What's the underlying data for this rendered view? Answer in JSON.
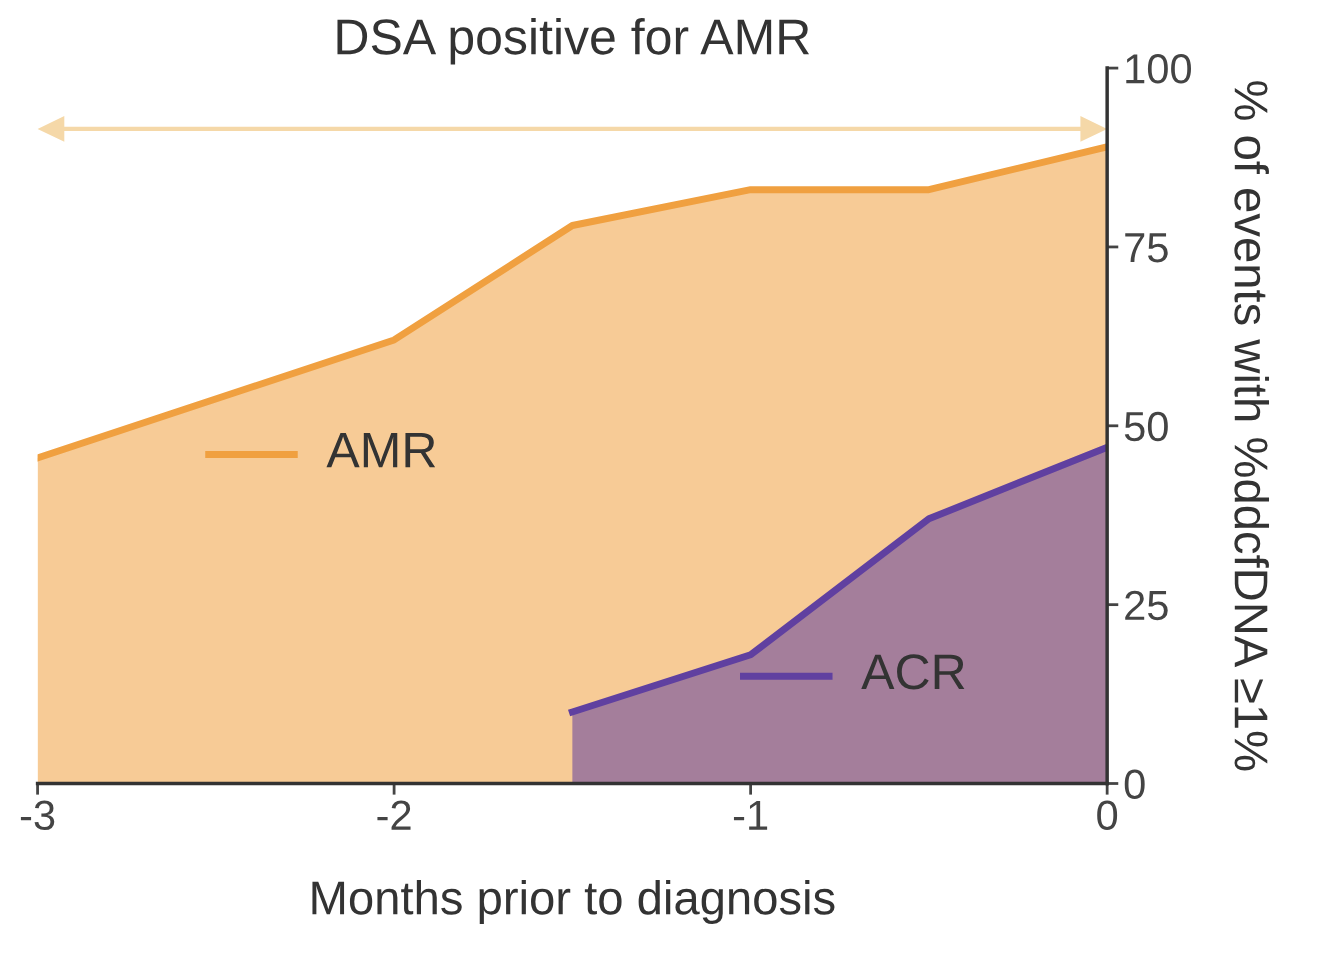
{
  "chart_data": {
    "type": "area",
    "xlabel": "Months prior to diagnosis",
    "y2label": "% of events with %ddcfDNA ≥1%",
    "annotations": [
      "DSA positive for AMR"
    ],
    "series": [
      {
        "name": "AMR",
        "color": "#f0a040",
        "x": [
          -3,
          -2,
          -1.5,
          -1,
          -0.5,
          0
        ],
        "values": [
          45.5,
          62,
          78,
          83,
          83,
          89
        ],
        "axis": "y2"
      },
      {
        "name": "ACR",
        "color": "#6040a0",
        "x": [
          -1.5,
          -1,
          -0.5,
          0
        ],
        "values": [
          10,
          18,
          37,
          47
        ],
        "axis": "y2"
      }
    ],
    "xlim": [
      -3,
      0
    ],
    "xticks": [
      -3,
      -2,
      -1,
      0
    ],
    "y2lim": [
      0,
      100
    ],
    "y2ticks": [
      0,
      25,
      50,
      75,
      100
    ],
    "grid": false,
    "legend": "center"
  }
}
